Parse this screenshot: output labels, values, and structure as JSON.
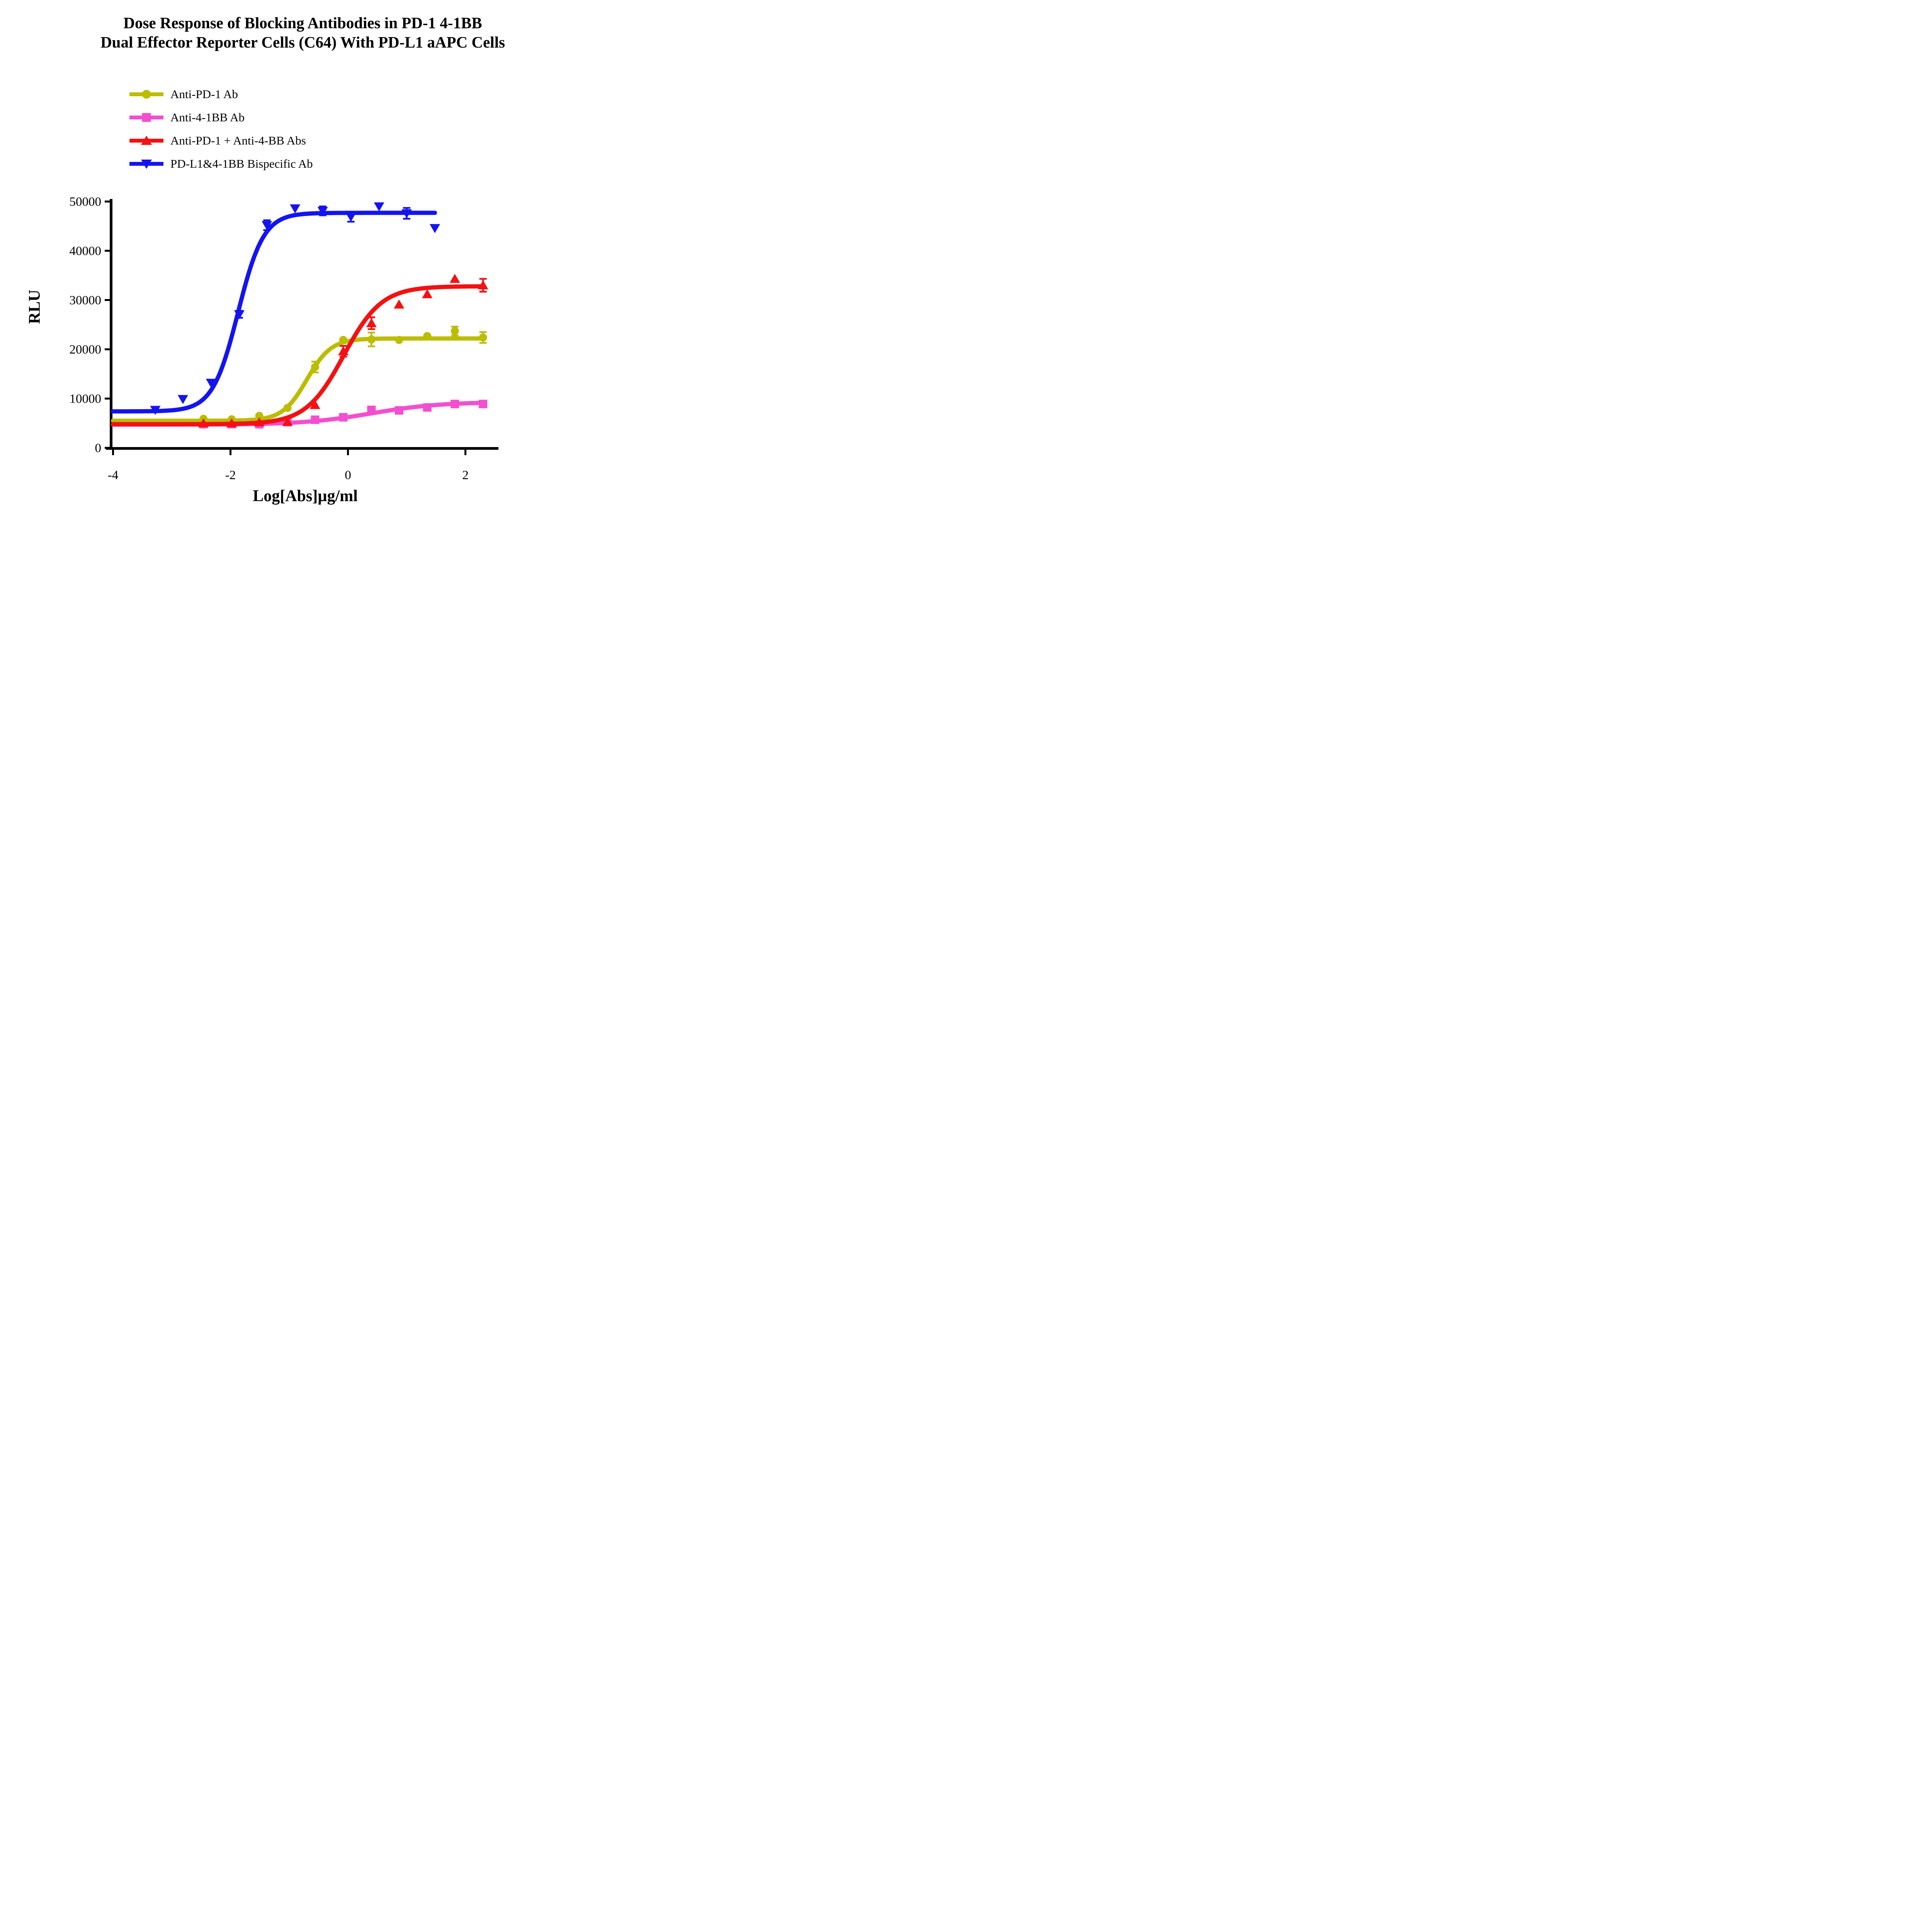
{
  "figure_background": "#ffffff",
  "chart_data": {
    "type": "line",
    "title_line1": "Dose Response of Blocking Antibodies in PD-1 4-1BB",
    "title_line2": "Dual Effector Reporter Cells (C64) With PD-L1 aAPC Cells",
    "xlabel": "Log[Abs]µg/ml",
    "ylabel": "RLU",
    "xlim": [
      -4,
      2.57
    ],
    "ylim": [
      0,
      50000
    ],
    "x_ticks": [
      -4,
      -2,
      0,
      2
    ],
    "y_ticks": [
      0,
      10000,
      20000,
      30000,
      40000,
      50000
    ],
    "grid": false,
    "axis_color": "#000000",
    "legend_position": "above-plot-left",
    "series": [
      {
        "name": "Anti-PD-1 Ab",
        "color": "#bcbd00",
        "marker": "circle",
        "x": [
          -2.46,
          -1.98,
          -1.51,
          -1.03,
          -0.56,
          -0.08,
          0.4,
          0.87,
          1.35,
          1.82,
          2.3
        ],
        "y": [
          5900,
          5800,
          6500,
          8100,
          16400,
          21900,
          22000,
          21900,
          22700,
          23700,
          22400
        ],
        "err": [
          null,
          null,
          null,
          null,
          1100,
          null,
          1400,
          null,
          null,
          900,
          1100
        ],
        "fit": {
          "bottom": 5500,
          "top": 22200,
          "logec50": -0.7,
          "hill": 2.1,
          "x_start": -4,
          "x_end": 2.3
        }
      },
      {
        "name": "Anti-4-1BB Ab",
        "color": "#f24fd0",
        "marker": "square",
        "x": [
          -2.46,
          -1.98,
          -1.51,
          -1.03,
          -0.56,
          -0.08,
          0.4,
          0.87,
          1.35,
          1.82,
          2.3
        ],
        "y": [
          4800,
          4800,
          4800,
          5200,
          5700,
          6200,
          7700,
          7600,
          8200,
          8900,
          8900
        ],
        "err": [
          null,
          null,
          null,
          null,
          null,
          null,
          null,
          null,
          null,
          null,
          null
        ],
        "fit": {
          "bottom": 4700,
          "top": 9300,
          "logec50": 0.4,
          "hill": 0.75,
          "x_start": -4,
          "x_end": 2.3
        }
      },
      {
        "name": "Anti-PD-1 + Anti-4-BB Abs",
        "color": "#f31112",
        "marker": "triangle-up",
        "x": [
          -2.46,
          -1.98,
          -1.51,
          -1.03,
          -0.56,
          -0.08,
          0.4,
          0.87,
          1.35,
          1.82,
          2.3
        ],
        "y": [
          5000,
          5000,
          5200,
          5300,
          8700,
          19600,
          25300,
          29100,
          31200,
          34300,
          33000
        ],
        "err": [
          null,
          null,
          null,
          null,
          null,
          1100,
          1200,
          null,
          null,
          null,
          1300
        ],
        "fit": {
          "bottom": 4800,
          "top": 32800,
          "logec50": -0.07,
          "hill": 1.35,
          "x_start": -4,
          "x_end": 2.3
        }
      },
      {
        "name": "PD-L1&4-1BB Bispecific Ab",
        "color": "#1414f0",
        "marker": "triangle-down",
        "x": [
          -3.28,
          -2.81,
          -2.33,
          -1.85,
          -1.38,
          -0.9,
          -0.43,
          0.05,
          0.53,
          1.0,
          1.48
        ],
        "y": [
          7700,
          9900,
          13200,
          27100,
          45200,
          48600,
          48100,
          46900,
          49000,
          47600,
          44600
        ],
        "err": [
          null,
          null,
          null,
          700,
          1000,
          null,
          900,
          1000,
          null,
          1100,
          null
        ],
        "fit": {
          "bottom": 7400,
          "top": 47700,
          "logec50": -1.87,
          "hill": 2.0,
          "x_start": -4,
          "x_end": 1.48
        }
      }
    ]
  }
}
